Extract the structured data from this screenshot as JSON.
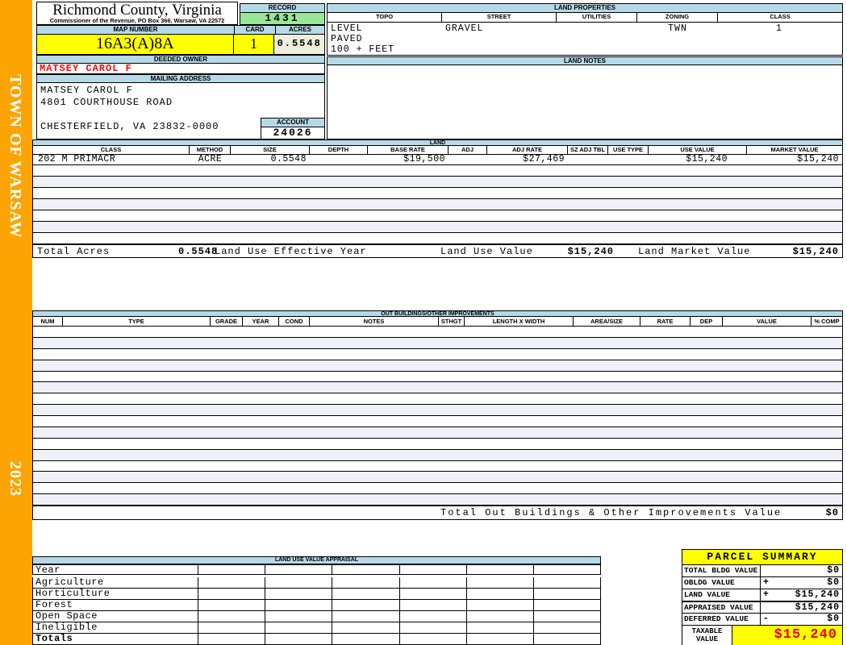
{
  "sidebar": {
    "town": "TOWN OF WARSAW",
    "year": "2023"
  },
  "header": {
    "county": "Richmond County, Virginia",
    "commissioner": "Commissioner of the Revenue, PO Box 366, Warsaw, VA 22572",
    "record_label": "RECORD",
    "record_value": "1431",
    "map_number_label": "MAP NUMBER",
    "map_number_value": "16A3(A)8A",
    "card_label": "CARD",
    "card_value": "1",
    "acres_label": "ACRES",
    "acres_value": "0.5548"
  },
  "land_properties": {
    "title": "LAND PROPERTIES",
    "columns": [
      "TOPO",
      "STREET",
      "UTILITIES",
      "ZONING",
      "CLASS"
    ],
    "topo_lines": [
      "LEVEL",
      "PAVED",
      "100 + FEET"
    ],
    "street": "GRAVEL",
    "utilities": "",
    "zoning": "TWN",
    "class": "1"
  },
  "owner": {
    "deeded_owner_label": "DEEDED OWNER",
    "deeded_owner": "MATSEY CAROL F",
    "mailing_address_label": "MAILING ADDRESS",
    "address_line1": "MATSEY CAROL F",
    "address_line2": "4801 COURTHOUSE ROAD",
    "address_line3": "CHESTERFIELD, VA 23832-0000",
    "account_label": "ACCOUNT",
    "account_value": "24026"
  },
  "land_notes": {
    "title": "LAND NOTES",
    "content": ""
  },
  "land": {
    "title": "LAND",
    "columns": [
      "CLASS",
      "METHOD",
      "SIZE",
      "DEPTH",
      "BASE RATE",
      "ADJ",
      "ADJ RATE",
      "SZ ADJ TBL",
      "USE TYPE",
      "USE VALUE",
      "MARKET VALUE"
    ],
    "rows": [
      {
        "class": "202 M PRIMACR",
        "method": "ACRE",
        "size": "0.5548",
        "depth": "",
        "base_rate": "$19,500",
        "adj": "",
        "adj_rate": "$27,469",
        "sz_adj_tbl": "",
        "use_type": "",
        "use_value": "$15,240",
        "market_value": "$15,240"
      }
    ],
    "empty_row_count": 7,
    "totals": {
      "total_acres_label": "Total Acres",
      "total_acres": "0.5548",
      "effective_year_label": "Land Use Effective Year",
      "use_value_label": "Land Use Value",
      "use_value": "$15,240",
      "market_value_label": "Land Market Value",
      "market_value": "$15,240"
    }
  },
  "out_buildings": {
    "title": "OUT BUILDINGS/OTHER IMPROVEMENTS",
    "columns": [
      "NUM",
      "TYPE",
      "GRADE",
      "YEAR",
      "COND",
      "NOTES",
      "STHGT",
      "LENGTH X WIDTH",
      "AREA/SIZE",
      "RATE",
      "DEP",
      "VALUE",
      "% COMP"
    ],
    "empty_row_count": 16,
    "total_label": "Total Out Buildings & Other Improvements Value",
    "total_value": "$0"
  },
  "land_use_appraisal": {
    "title": "LAND USE VALUE APPRAISAL",
    "row_labels": [
      "Year",
      "Agriculture",
      "Horticulture",
      "Forest",
      "Open Space",
      "Ineligible",
      "Totals"
    ],
    "data_column_count": 6
  },
  "parcel_summary": {
    "title": "PARCEL SUMMARY",
    "rows": [
      {
        "label": "TOTAL BLDG VALUE",
        "op": "",
        "value": "$0"
      },
      {
        "label": "OBLDG VALUE",
        "op": "+",
        "value": "$0"
      },
      {
        "label": "LAND VALUE",
        "op": "+",
        "value": "$15,240"
      },
      {
        "label": "APPRAISED VALUE",
        "op": "",
        "value": "$15,240"
      },
      {
        "label": "DEFERRED VALUE",
        "op": "-",
        "value": "$0"
      }
    ],
    "taxable_label_line1": "TAXABLE",
    "taxable_label_line2": "VALUE",
    "taxable_value": "$15,240"
  },
  "colors": {
    "accent_orange": "#FCA404",
    "header_blue": "#B6D9E8",
    "record_green": "#99E699",
    "highlight_yellow": "#FFFF00",
    "acres_beige": "#EEEEDF",
    "row_stripe": "#F0F0F8",
    "owner_red": "#FF0000",
    "taxable_red": "#E60000"
  }
}
